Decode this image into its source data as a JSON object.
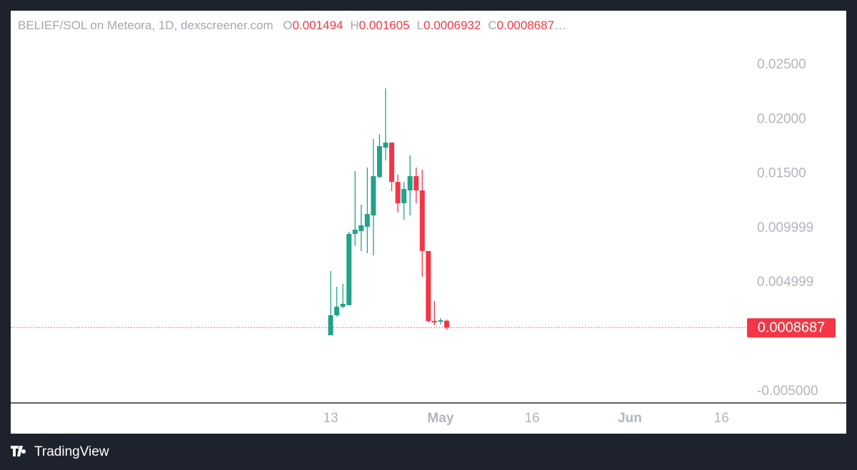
{
  "chart_data": {
    "type": "candlestick",
    "title": "BELIEF/SOL on Meteora, 1D, dexscreener.com",
    "ohlc_labels": [
      "O",
      "H",
      "L",
      "C"
    ],
    "truncation": "…",
    "x": [
      13,
      14,
      15,
      16,
      17,
      18,
      19,
      20,
      21,
      22,
      23,
      24,
      25,
      26,
      27,
      28,
      29,
      30,
      31,
      32
    ],
    "open": [
      0.00016,
      0.002,
      0.00278,
      0.00292,
      0.00947,
      0.00973,
      0.01013,
      0.01117,
      0.01471,
      0.0174,
      0.01786,
      0.01425,
      0.01229,
      0.01347,
      0.01478,
      0.01347,
      0.0079,
      0.00147,
      0.00141,
      0.001494
    ],
    "high": [
      0.00606,
      0.00462,
      0.00488,
      0.00967,
      0.01524,
      0.01216,
      0.01557,
      0.01819,
      0.01864,
      0.02284,
      0.01786,
      0.01491,
      0.01425,
      0.01668,
      0.01557,
      0.01537,
      0.0079,
      0.00331,
      0.00174,
      0.001605
    ],
    "low": [
      0.00016,
      0.00187,
      0.00265,
      0.00292,
      0.00836,
      0.0079,
      0.0077,
      0.0075,
      0.01458,
      0.01622,
      0.0134,
      0.01143,
      0.01078,
      0.01117,
      0.01229,
      0.00554,
      0.00134,
      0.00108,
      0.00115,
      0.0006932
    ],
    "close": [
      0.002,
      0.00278,
      0.00305,
      0.00947,
      0.00986,
      0.01026,
      0.0113,
      0.01478,
      0.01753,
      0.01786,
      0.01425,
      0.01229,
      0.0136,
      0.01478,
      0.01347,
      0.0079,
      0.00147,
      0.00134,
      0.00154,
      0.0008687
    ],
    "up_color": "#22a28a",
    "down_color": "#f23645",
    "xlim": [
      -39.4,
      81.07
    ],
    "xticks": [
      {
        "value": 13,
        "label": "13"
      },
      {
        "value": 31,
        "label": "May"
      },
      {
        "value": 46,
        "label": "16"
      },
      {
        "value": 62,
        "label": "Jun"
      },
      {
        "value": 77,
        "label": "16"
      }
    ],
    "ylim": [
      -0.00606,
      0.02998
    ],
    "yticks": [
      {
        "value": 0.025,
        "label": "0.02500"
      },
      {
        "value": 0.02,
        "label": "0.02000"
      },
      {
        "value": 0.015,
        "label": "0.01500"
      },
      0.009999,
      0.004999,
      {
        "value": -0.005,
        "label": "-0.005000"
      }
    ],
    "grid": false
  },
  "footer": {
    "brand": "TradingView"
  }
}
